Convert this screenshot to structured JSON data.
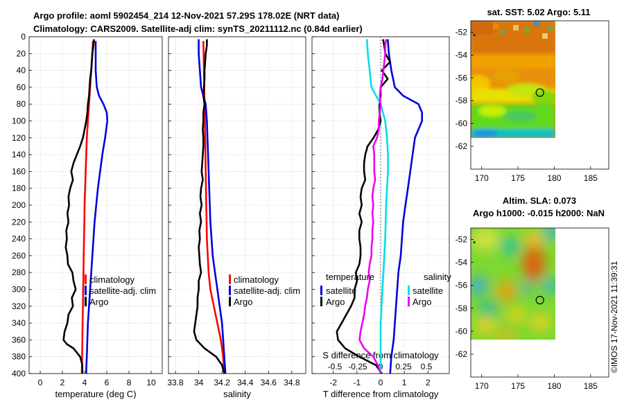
{
  "header": {
    "line1": "Argo profile: aoml 5902454_214 12-Nov-2021 57.29S 178.02E (NRT data)",
    "line2": "Climatology: CARS2009. Satellite-adj clim: synTS_20211112.nc (0.84d earlier)"
  },
  "footer": {
    "credit": "©IMOS 17-Nov-2021 11:39:31"
  },
  "chart_data": [
    {
      "id": "temperature",
      "type": "line",
      "xlabel": "temperature (deg C)",
      "xlim": [
        -1,
        11
      ],
      "xticks": [
        0,
        2,
        4,
        6,
        8,
        10
      ],
      "ylim": [
        0,
        400
      ],
      "yticks": [
        0,
        20,
        40,
        60,
        80,
        100,
        120,
        140,
        160,
        180,
        200,
        220,
        240,
        260,
        280,
        300,
        320,
        340,
        360,
        380,
        400
      ],
      "grid": true,
      "legend_position": "lower-right",
      "series": [
        {
          "name": "climatology",
          "color": "#ff0000",
          "depth": [
            5,
            20,
            40,
            60,
            80,
            100,
            120,
            140,
            160,
            180,
            200,
            220,
            240,
            260,
            280,
            300,
            320,
            340,
            360,
            380,
            400
          ],
          "values": [
            4.75,
            4.7,
            4.6,
            4.5,
            4.4,
            4.3,
            4.2,
            4.15,
            4.1,
            4.05,
            4.0,
            3.98,
            3.95,
            3.92,
            3.9,
            3.87,
            3.85,
            3.82,
            3.8,
            3.78,
            3.75
          ]
        },
        {
          "name": "satellite-adj. clim",
          "color": "#0000dd",
          "depth": [
            5,
            20,
            40,
            60,
            70,
            80,
            90,
            100,
            120,
            140,
            160,
            180,
            200,
            220,
            240,
            260,
            280,
            300,
            320,
            340,
            360,
            380,
            395,
            400
          ],
          "values": [
            5.0,
            5.0,
            5.0,
            5.1,
            5.3,
            5.7,
            6.0,
            6.05,
            5.85,
            5.6,
            5.4,
            5.2,
            5.05,
            4.9,
            4.8,
            4.7,
            4.6,
            4.5,
            4.4,
            4.3,
            4.25,
            4.2,
            4.15,
            4.15
          ]
        },
        {
          "name": "Argo",
          "color": "#000000",
          "depth": [
            3,
            10,
            20,
            30,
            40,
            50,
            60,
            70,
            80,
            90,
            100,
            110,
            120,
            130,
            140,
            150,
            160,
            170,
            180,
            190,
            200,
            210,
            220,
            230,
            240,
            250,
            260,
            270,
            280,
            290,
            300,
            310,
            320,
            330,
            340,
            350,
            360,
            365,
            370,
            380,
            390,
            400
          ],
          "values": [
            4.85,
            4.8,
            4.7,
            4.65,
            4.6,
            4.5,
            4.45,
            4.4,
            4.3,
            4.25,
            4.15,
            4.0,
            3.85,
            3.6,
            3.3,
            3.0,
            2.8,
            2.95,
            2.7,
            2.55,
            2.6,
            2.45,
            2.55,
            2.35,
            2.4,
            2.3,
            2.45,
            2.5,
            2.9,
            3.0,
            3.2,
            2.85,
            2.95,
            2.55,
            2.45,
            2.2,
            2.1,
            2.4,
            3.0,
            3.6,
            3.8,
            3.8
          ]
        }
      ]
    },
    {
      "id": "salinity",
      "type": "line",
      "xlabel": "salinity",
      "xlim": [
        33.74,
        34.92
      ],
      "xticks": [
        33.8,
        34.0,
        34.2,
        34.4,
        34.6,
        34.8
      ],
      "xticklabels": [
        "33.8",
        "34",
        "34.2",
        "34.4",
        "34.6",
        "34.8"
      ],
      "ylim": [
        0,
        400
      ],
      "grid": true,
      "legend_position": "lower-right",
      "series": [
        {
          "name": "climatology",
          "color": "#ff0000",
          "depth": [
            5,
            40,
            80,
            120,
            160,
            200,
            240,
            280,
            300,
            320,
            340,
            360,
            380,
            400
          ],
          "values": [
            34.04,
            34.045,
            34.05,
            34.055,
            34.06,
            34.065,
            34.07,
            34.085,
            34.1,
            34.13,
            34.16,
            34.19,
            34.21,
            34.22
          ]
        },
        {
          "name": "satellite-adj. clim",
          "color": "#0000dd",
          "depth": [
            3,
            20,
            40,
            60,
            70,
            80,
            100,
            120,
            140,
            160,
            180,
            200,
            220,
            240,
            260,
            280,
            300,
            320,
            340,
            360,
            380,
            400
          ],
          "values": [
            34.0,
            34.0,
            34.01,
            34.02,
            34.04,
            34.06,
            34.07,
            34.075,
            34.08,
            34.085,
            34.09,
            34.095,
            34.1,
            34.11,
            34.12,
            34.14,
            34.16,
            34.18,
            34.2,
            34.21,
            34.22,
            34.23
          ]
        },
        {
          "name": "Argo",
          "color": "#000000",
          "depth": [
            3,
            10,
            20,
            30,
            40,
            50,
            60,
            70,
            80,
            90,
            100,
            110,
            120,
            130,
            140,
            150,
            160,
            170,
            180,
            190,
            200,
            210,
            220,
            230,
            240,
            250,
            260,
            270,
            280,
            290,
            300,
            310,
            320,
            330,
            340,
            350,
            360,
            370,
            380,
            390,
            400
          ],
          "values": [
            34.07,
            34.07,
            34.06,
            34.055,
            34.05,
            34.05,
            34.045,
            34.04,
            34.05,
            34.04,
            34.04,
            34.035,
            34.04,
            34.04,
            34.035,
            34.03,
            34.025,
            34.035,
            34.02,
            34.015,
            34.025,
            34.01,
            34.02,
            34.005,
            34.01,
            34.0,
            34.005,
            34.01,
            34.02,
            34.0,
            34.0,
            33.99,
            33.99,
            33.98,
            33.97,
            33.96,
            33.98,
            34.05,
            34.15,
            34.2,
            34.22
          ]
        }
      ]
    },
    {
      "id": "difference",
      "type": "line",
      "xlabel": "T difference from climatology",
      "xlim": [
        -2.9,
        2.9
      ],
      "xticks": [
        -2,
        -1,
        0,
        1,
        2
      ],
      "top_label": "S difference from climatology",
      "top_xticks": [
        -0.5,
        -0.25,
        0,
        0.25,
        0.5
      ],
      "top_xticklabels": [
        "-0.5",
        "-0.25",
        "0",
        "0.25",
        "0.5"
      ],
      "ylim": [
        0,
        400
      ],
      "grid": true,
      "legend_titles": [
        "temperature",
        "salinity"
      ],
      "series": [
        {
          "name": "temperature satellite",
          "legend": "satellite",
          "color": "#0000dd",
          "depth": [
            3,
            20,
            40,
            60,
            70,
            80,
            90,
            100,
            120,
            140,
            160,
            180,
            200,
            220,
            240,
            260,
            280,
            300,
            320,
            340,
            360,
            380,
            400
          ],
          "values": [
            0.3,
            0.35,
            0.45,
            0.6,
            0.95,
            1.6,
            1.75,
            1.75,
            1.45,
            1.35,
            1.25,
            1.15,
            1.05,
            0.95,
            0.9,
            0.85,
            0.75,
            0.7,
            0.65,
            0.6,
            0.55,
            0.45,
            0.4
          ]
        },
        {
          "name": "temperature Argo",
          "legend": "Argo",
          "color": "#000000",
          "depth": [
            3,
            10,
            20,
            30,
            40,
            50,
            60,
            70,
            80,
            90,
            100,
            110,
            120,
            130,
            140,
            150,
            160,
            170,
            180,
            190,
            200,
            210,
            220,
            230,
            240,
            250,
            260,
            270,
            280,
            290,
            300,
            310,
            320,
            330,
            340,
            350,
            360,
            370,
            380,
            390,
            400
          ],
          "values": [
            0.1,
            0.15,
            0.2,
            0.4,
            0.05,
            0.3,
            0.0,
            0.0,
            -0.05,
            -0.05,
            0.0,
            -0.1,
            -0.3,
            -0.55,
            -0.65,
            -0.7,
            -0.7,
            -0.65,
            -0.8,
            -0.85,
            -0.8,
            -0.9,
            -0.8,
            -0.9,
            -0.9,
            -0.85,
            -0.85,
            -0.9,
            -1.05,
            -1.0,
            -1.1,
            -1.1,
            -1.25,
            -1.45,
            -1.65,
            -1.85,
            -1.8,
            -1.5,
            -0.9,
            -0.2,
            0.05
          ]
        },
        {
          "name": "salinity satellite",
          "legend": "satellite",
          "color": "#00ddee",
          "depth": [
            3,
            20,
            40,
            60,
            70,
            80,
            100,
            120,
            140,
            160,
            180,
            200,
            240,
            280,
            300,
            340,
            360,
            380,
            400
          ],
          "values": [
            -0.15,
            -0.14,
            -0.12,
            -0.1,
            -0.05,
            0.0,
            0.05,
            0.07,
            0.08,
            0.08,
            0.07,
            0.06,
            0.05,
            0.03,
            0.02,
            0.0,
            0.0,
            0.0,
            0.0
          ]
        },
        {
          "name": "salinity Argo",
          "legend": "Argo",
          "color": "#ee00ee",
          "depth": [
            3,
            10,
            20,
            30,
            40,
            50,
            60,
            70,
            80,
            90,
            100,
            110,
            120,
            130,
            140,
            150,
            160,
            170,
            180,
            190,
            200,
            210,
            220,
            230,
            240,
            250,
            260,
            270,
            280,
            290,
            300,
            310,
            320,
            330,
            340,
            350,
            360,
            370,
            380,
            390,
            400
          ],
          "values": [
            0.06,
            0.05,
            0.05,
            0.04,
            0.03,
            0.02,
            0.0,
            -0.01,
            0.0,
            -0.01,
            -0.02,
            -0.02,
            -0.04,
            -0.08,
            -0.07,
            -0.07,
            -0.07,
            -0.06,
            -0.08,
            -0.09,
            -0.08,
            -0.09,
            -0.08,
            -0.09,
            -0.09,
            -0.1,
            -0.1,
            -0.12,
            -0.13,
            -0.12,
            -0.14,
            -0.15,
            -0.17,
            -0.18,
            -0.2,
            -0.22,
            -0.23,
            -0.18,
            -0.08,
            -0.03,
            0.0
          ]
        }
      ]
    },
    {
      "id": "sst_map",
      "type": "heatmap",
      "title": "sat. SST: 5.02 Argo: 5.11",
      "xlim": [
        168.5,
        187.5
      ],
      "xticks": [
        170,
        175,
        180,
        185
      ],
      "ylim": [
        -64,
        -51
      ],
      "yticks": [
        -52,
        -54,
        -56,
        -58,
        -60,
        -62
      ],
      "data_extent": {
        "lon": [
          169,
          180
        ],
        "lat": [
          -60,
          -51
        ]
      },
      "argo_position": {
        "lon": 178.02,
        "lat": -57.29
      }
    },
    {
      "id": "sla_map",
      "type": "heatmap",
      "title": "Altim. SLA: 0.073",
      "subtitle": "Argo h1000: -0.015 h2000: NaN",
      "xlim": [
        168.5,
        187.5
      ],
      "xticks": [
        170,
        175,
        180,
        185
      ],
      "ylim": [
        -64,
        -51
      ],
      "yticks": [
        -52,
        -54,
        -56,
        -58,
        -60,
        -62
      ],
      "data_extent": {
        "lon": [
          169,
          180
        ],
        "lat": [
          -60,
          -51
        ]
      },
      "argo_position": {
        "lon": 178.02,
        "lat": -57.29
      }
    }
  ]
}
